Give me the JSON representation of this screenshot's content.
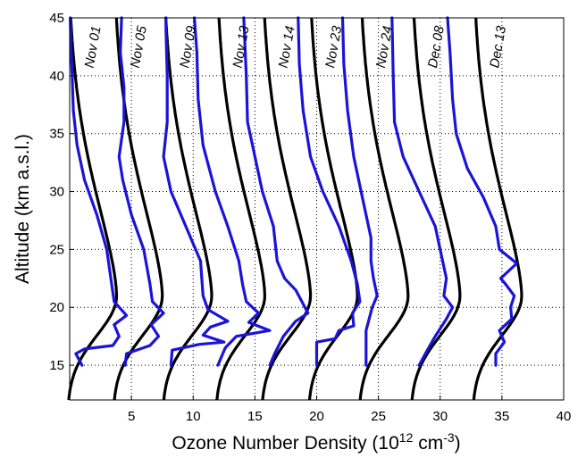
{
  "chart_data": {
    "type": "line",
    "xlabel_main": "Ozone Number Density (10",
    "xlabel_exp1": "12",
    "xlabel_unit": " cm",
    "xlabel_exp2": "-3",
    "xlabel_close": ")",
    "ylabel": "Altitude (km a.s.l.)",
    "xlim": [
      0,
      40
    ],
    "ylim": [
      12,
      45
    ],
    "xticks": [
      "5",
      "10",
      "15",
      "20",
      "25",
      "30",
      "35",
      "40"
    ],
    "yticks": [
      "15",
      "20",
      "25",
      "30",
      "35",
      "40",
      "45"
    ],
    "grid": true,
    "colors": {
      "model": "#000000",
      "measured": "#1a14d6"
    },
    "profiles": [
      {
        "label": "Nov 01",
        "peak": 3.8,
        "peakAlt": 21,
        "meas": [
          [
            1.0,
            15
          ],
          [
            0.5,
            16
          ],
          [
            1.2,
            16.4
          ],
          [
            3.5,
            16.7
          ],
          [
            4.0,
            17.5
          ],
          [
            3.6,
            18.5
          ],
          [
            4.6,
            19.3
          ],
          [
            3.6,
            20.5
          ],
          [
            3.4,
            22
          ],
          [
            3.0,
            25
          ],
          [
            2.2,
            28
          ],
          [
            1.2,
            31
          ],
          [
            0.6,
            34
          ],
          [
            0.3,
            37
          ],
          [
            0.2,
            40
          ],
          [
            0.1,
            42.5
          ],
          [
            0.05,
            45
          ]
        ]
      },
      {
        "label": "Nov 05",
        "peak": 7.5,
        "peakAlt": 20.5,
        "meas": [
          [
            4.5,
            15
          ],
          [
            4.6,
            16
          ],
          [
            6.5,
            16.7
          ],
          [
            7.2,
            17.5
          ],
          [
            6.6,
            18.5
          ],
          [
            7.6,
            19.5
          ],
          [
            6.7,
            20.5
          ],
          [
            6.5,
            22
          ],
          [
            6.0,
            25
          ],
          [
            5.0,
            28
          ],
          [
            4.3,
            31
          ],
          [
            4.0,
            33
          ],
          [
            4.4,
            36
          ],
          [
            4.4,
            39
          ],
          [
            4.1,
            42
          ],
          [
            4.2,
            45
          ]
        ]
      },
      {
        "label": "Nov 09",
        "peak": 11.5,
        "peakAlt": 21,
        "meas": [
          [
            8.2,
            15
          ],
          [
            8.3,
            16.3
          ],
          [
            10.5,
            16.8
          ],
          [
            12.5,
            17.0
          ],
          [
            10.8,
            17.6
          ],
          [
            11.4,
            18.3
          ],
          [
            12.8,
            18.8
          ],
          [
            11.2,
            19.8
          ],
          [
            10.8,
            21
          ],
          [
            10.6,
            24
          ],
          [
            9.4,
            27
          ],
          [
            8.2,
            30
          ],
          [
            7.6,
            33
          ],
          [
            7.9,
            36
          ],
          [
            7.9,
            40
          ],
          [
            7.8,
            44
          ],
          [
            7.8,
            45
          ]
        ]
      },
      {
        "label": "Nov 13",
        "peak": 15.8,
        "peakAlt": 21,
        "meas": [
          [
            12.0,
            15
          ],
          [
            12.6,
            16.5
          ],
          [
            13.5,
            17.5
          ],
          [
            16.2,
            18.0
          ],
          [
            14.5,
            18.7
          ],
          [
            15.3,
            19.5
          ],
          [
            14.3,
            20.5
          ],
          [
            14.0,
            22
          ],
          [
            13.7,
            24
          ],
          [
            12.8,
            27
          ],
          [
            11.8,
            30
          ],
          [
            10.8,
            34
          ],
          [
            10.4,
            38
          ],
          [
            10.3,
            42
          ],
          [
            10.1,
            45
          ]
        ]
      },
      {
        "label": "Nov 14",
        "peak": 19.5,
        "peakAlt": 21,
        "meas": [
          [
            16.2,
            15
          ],
          [
            16.6,
            16
          ],
          [
            17.3,
            17.5
          ],
          [
            18.3,
            18.8
          ],
          [
            19.3,
            19.5
          ],
          [
            18.8,
            20.5
          ],
          [
            18.3,
            21.5
          ],
          [
            17.4,
            22.5
          ],
          [
            16.8,
            24
          ],
          [
            16.5,
            27
          ],
          [
            15.6,
            30
          ],
          [
            15.0,
            33
          ],
          [
            14.4,
            36
          ],
          [
            14.3,
            40
          ],
          [
            14.1,
            45
          ]
        ]
      },
      {
        "label": "Nov 23",
        "peak": 23.3,
        "peakAlt": 21,
        "meas": [
          [
            20.0,
            15
          ],
          [
            20.0,
            17.0
          ],
          [
            21.5,
            17.3
          ],
          [
            21.8,
            18.0
          ],
          [
            23.0,
            18.4
          ],
          [
            22.9,
            19.5
          ],
          [
            23.5,
            20.5
          ],
          [
            23.3,
            22.0
          ],
          [
            22.8,
            24
          ],
          [
            21.8,
            27
          ],
          [
            20.5,
            30
          ],
          [
            19.5,
            33
          ],
          [
            18.9,
            37
          ],
          [
            18.6,
            41
          ],
          [
            18.5,
            45
          ]
        ]
      },
      {
        "label": "Nov 24",
        "peak": 27.4,
        "peakAlt": 21,
        "meas": [
          [
            24.0,
            15
          ],
          [
            24.0,
            16.5
          ],
          [
            24.0,
            18.0
          ],
          [
            24.5,
            20
          ],
          [
            24.9,
            21
          ],
          [
            24.6,
            22.5
          ],
          [
            24.4,
            24
          ],
          [
            24.4,
            26
          ],
          [
            23.8,
            29
          ],
          [
            23.0,
            33
          ],
          [
            22.5,
            37
          ],
          [
            22.2,
            41
          ],
          [
            22.1,
            45
          ]
        ]
      },
      {
        "label": "Dec 08",
        "peak": 31.6,
        "peakAlt": 21,
        "meas": [
          [
            28.3,
            15
          ],
          [
            28.8,
            16
          ],
          [
            29.6,
            17.5
          ],
          [
            30.5,
            19
          ],
          [
            31.0,
            20
          ],
          [
            30.3,
            21
          ],
          [
            30.5,
            22.5
          ],
          [
            30.2,
            24
          ],
          [
            29.6,
            27
          ],
          [
            28.3,
            30
          ],
          [
            27.0,
            33
          ],
          [
            26.3,
            36
          ],
          [
            26.2,
            40
          ],
          [
            26.1,
            45
          ]
        ]
      },
      {
        "label": "Dec 13",
        "peak": 36.6,
        "peakAlt": 21,
        "meas": [
          [
            34.5,
            15
          ],
          [
            34.5,
            16
          ],
          [
            35.2,
            17
          ],
          [
            34.8,
            18
          ],
          [
            35.8,
            19
          ],
          [
            35.7,
            20
          ],
          [
            36.0,
            21
          ],
          [
            35.3,
            22
          ],
          [
            34.9,
            22.5
          ],
          [
            36.2,
            23.8
          ],
          [
            34.8,
            25
          ],
          [
            34.5,
            27
          ],
          [
            33.5,
            29.5
          ],
          [
            32.2,
            32
          ],
          [
            31.3,
            35
          ],
          [
            31.0,
            38
          ],
          [
            30.8,
            42
          ],
          [
            30.6,
            45
          ]
        ]
      }
    ]
  }
}
